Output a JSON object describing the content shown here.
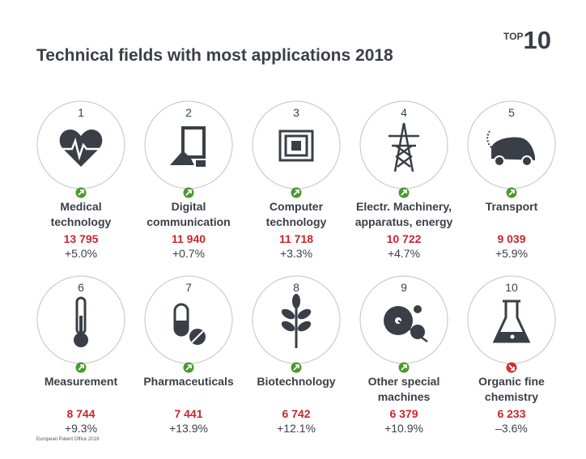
{
  "header": {
    "title": "Technical fields with most applications 2018",
    "badge_small": "TOP",
    "badge_large": "10"
  },
  "items": [
    {
      "rank": 1,
      "label": "Medical\ntechnology",
      "value": "13 795",
      "change": "+5.0%",
      "arrow_color": "#4a9a2e"
    },
    {
      "rank": 2,
      "label": "Digital\ncommunication",
      "value": "11 940",
      "change": "+0.7%",
      "arrow_color": "#4a9a2e"
    },
    {
      "rank": 3,
      "label": "Computer\ntechnology",
      "value": "11 718",
      "change": "+3.3%",
      "arrow_color": "#4a9a2e"
    },
    {
      "rank": 4,
      "label": "Electr. Machinery,\napparatus, energy",
      "value": "10 722",
      "change": "+4.7%",
      "arrow_color": "#4a9a2e"
    },
    {
      "rank": 5,
      "label": "Transport",
      "value": "9 039",
      "change": "+5.9%",
      "arrow_color": "#4a9a2e"
    },
    {
      "rank": 6,
      "label": "Measurement",
      "value": "8 744",
      "change": "+9.3%",
      "arrow_color": "#4a9a2e"
    },
    {
      "rank": 7,
      "label": "Pharmaceuticals",
      "value": "7 441",
      "change": "+13.9%",
      "arrow_color": "#4a9a2e"
    },
    {
      "rank": 8,
      "label": "Biotechnology",
      "value": "6 742",
      "change": "+12.1%",
      "arrow_color": "#4a9a2e"
    },
    {
      "rank": 9,
      "label": "Other special\nmachines",
      "value": "6 379",
      "change": "+10.9%",
      "arrow_color": "#4a9a2e"
    },
    {
      "rank": 10,
      "label": "Organic fine\nchemistry",
      "value": "6 233",
      "change": "–3.6%",
      "arrow_color": "#d0312d"
    }
  ],
  "footer": {
    "source": "European Patent Office 2019"
  }
}
